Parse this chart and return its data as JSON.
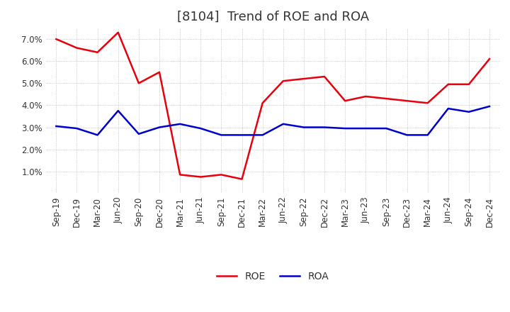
{
  "title": "[8104]  Trend of ROE and ROA",
  "x_labels": [
    "Sep-19",
    "Dec-19",
    "Mar-20",
    "Jun-20",
    "Sep-20",
    "Dec-20",
    "Mar-21",
    "Jun-21",
    "Sep-21",
    "Dec-21",
    "Mar-22",
    "Jun-22",
    "Sep-22",
    "Dec-22",
    "Mar-23",
    "Jun-23",
    "Sep-23",
    "Dec-23",
    "Mar-24",
    "Jun-24",
    "Sep-24",
    "Dec-24"
  ],
  "roe": [
    7.0,
    6.6,
    6.4,
    7.3,
    5.0,
    5.5,
    0.85,
    0.75,
    0.85,
    0.65,
    4.1,
    5.1,
    5.2,
    5.3,
    4.2,
    4.4,
    4.3,
    4.2,
    4.1,
    4.95,
    4.95,
    6.1
  ],
  "roa": [
    3.05,
    2.95,
    2.65,
    3.75,
    2.7,
    3.0,
    3.15,
    2.95,
    2.65,
    2.65,
    2.65,
    3.15,
    3.0,
    3.0,
    2.95,
    2.95,
    2.95,
    2.65,
    2.65,
    3.85,
    3.7,
    3.95
  ],
  "roe_color": "#e8000d",
  "roa_color": "#0000cc",
  "background_color": "#ffffff",
  "plot_bg_color": "#ffffff",
  "grid_color": "#aaaaaa",
  "title_color": "#333333",
  "ylim": [
    0.0,
    7.5
  ],
  "yticks": [
    1.0,
    2.0,
    3.0,
    4.0,
    5.0,
    6.0,
    7.0
  ],
  "title_fontsize": 13,
  "legend_fontsize": 10,
  "tick_fontsize": 8.5,
  "line_width": 1.8
}
